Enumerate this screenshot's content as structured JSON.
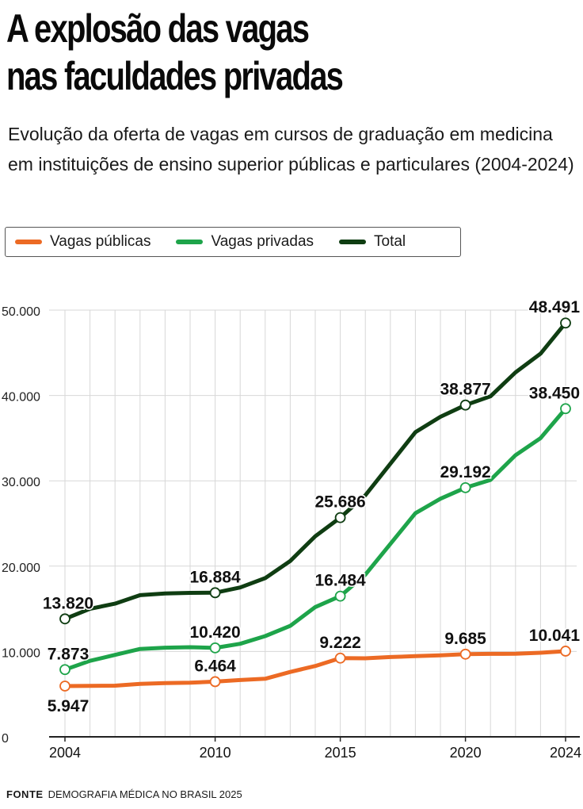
{
  "title_lines": [
    "A explosão das vagas",
    "nas faculdades privadas"
  ],
  "subtitle": "Evolução da oferta de vagas em cursos de graduação em medicina em instituições de ensino superior públicas e particulares (2004-2024)",
  "source": {
    "label": "FONTE",
    "text": "DEMOGRAFIA MÉDICA NO BRASIL 2025"
  },
  "colors": {
    "publicas": "#ec6a24",
    "privadas": "#1ea44a",
    "total": "#0f3d12",
    "grid": "#d7d7d7",
    "axis": "#222222"
  },
  "chart_data": {
    "type": "line",
    "title": "A explosão das vagas nas faculdades privadas",
    "x": [
      2004,
      2005,
      2006,
      2007,
      2008,
      2009,
      2010,
      2011,
      2012,
      2013,
      2014,
      2015,
      2016,
      2017,
      2018,
      2019,
      2020,
      2021,
      2022,
      2023,
      2024
    ],
    "xlim": [
      2004,
      2024
    ],
    "x_ticks": [
      2004,
      2010,
      2015,
      2020,
      2024
    ],
    "x_tick_labels": [
      "2004",
      "2010",
      "2015",
      "2020",
      "2024"
    ],
    "ylim": [
      0,
      50000
    ],
    "y_ticks": [
      0,
      10000,
      20000,
      30000,
      40000,
      50000
    ],
    "y_tick_labels": [
      "0",
      "10.000",
      "20.000",
      "30.000",
      "40.000",
      "50.000"
    ],
    "grid": "vertical lines every year, horizontal lines every 10.000",
    "legend_position": "top-left, above chart",
    "series": [
      {
        "key": "publicas",
        "name": "Vagas públicas",
        "values": [
          5947,
          5980,
          5990,
          6200,
          6290,
          6350,
          6464,
          6650,
          6800,
          7600,
          8300,
          9222,
          9200,
          9350,
          9450,
          9550,
          9685,
          9720,
          9730,
          9850,
          10041
        ],
        "labels": [
          {
            "x": 2004,
            "text": "5.947",
            "pos": "below"
          },
          {
            "x": 2010,
            "text": "6.464",
            "pos": "above"
          },
          {
            "x": 2015,
            "text": "9.222",
            "pos": "above"
          },
          {
            "x": 2020,
            "text": "9.685",
            "pos": "above"
          },
          {
            "x": 2024,
            "text": "10.041",
            "pos": "above"
          }
        ]
      },
      {
        "key": "privadas",
        "name": "Vagas privadas",
        "values": [
          7873,
          8900,
          9600,
          10300,
          10450,
          10500,
          10420,
          10900,
          11800,
          13000,
          15200,
          16484,
          19000,
          22600,
          26200,
          27900,
          29192,
          30100,
          33000,
          35000,
          38450
        ],
        "labels": [
          {
            "x": 2004,
            "text": "7.873",
            "pos": "above"
          },
          {
            "x": 2010,
            "text": "10.420",
            "pos": "above"
          },
          {
            "x": 2015,
            "text": "16.484",
            "pos": "above"
          },
          {
            "x": 2020,
            "text": "29.192",
            "pos": "above"
          },
          {
            "x": 2024,
            "text": "38.450",
            "pos": "above"
          }
        ]
      },
      {
        "key": "total",
        "name": "Total",
        "values": [
          13820,
          15000,
          15600,
          16600,
          16800,
          16870,
          16884,
          17500,
          18600,
          20600,
          23500,
          25686,
          28300,
          32000,
          35700,
          37500,
          38877,
          39900,
          42700,
          44900,
          48491
        ],
        "labels": [
          {
            "x": 2004,
            "text": "13.820",
            "pos": "above"
          },
          {
            "x": 2010,
            "text": "16.884",
            "pos": "above"
          },
          {
            "x": 2015,
            "text": "25.686",
            "pos": "above"
          },
          {
            "x": 2020,
            "text": "38.877",
            "pos": "above"
          },
          {
            "x": 2024,
            "text": "48.491",
            "pos": "above"
          }
        ]
      }
    ],
    "markers_at": [
      2004,
      2010,
      2015,
      2020,
      2024
    ]
  }
}
